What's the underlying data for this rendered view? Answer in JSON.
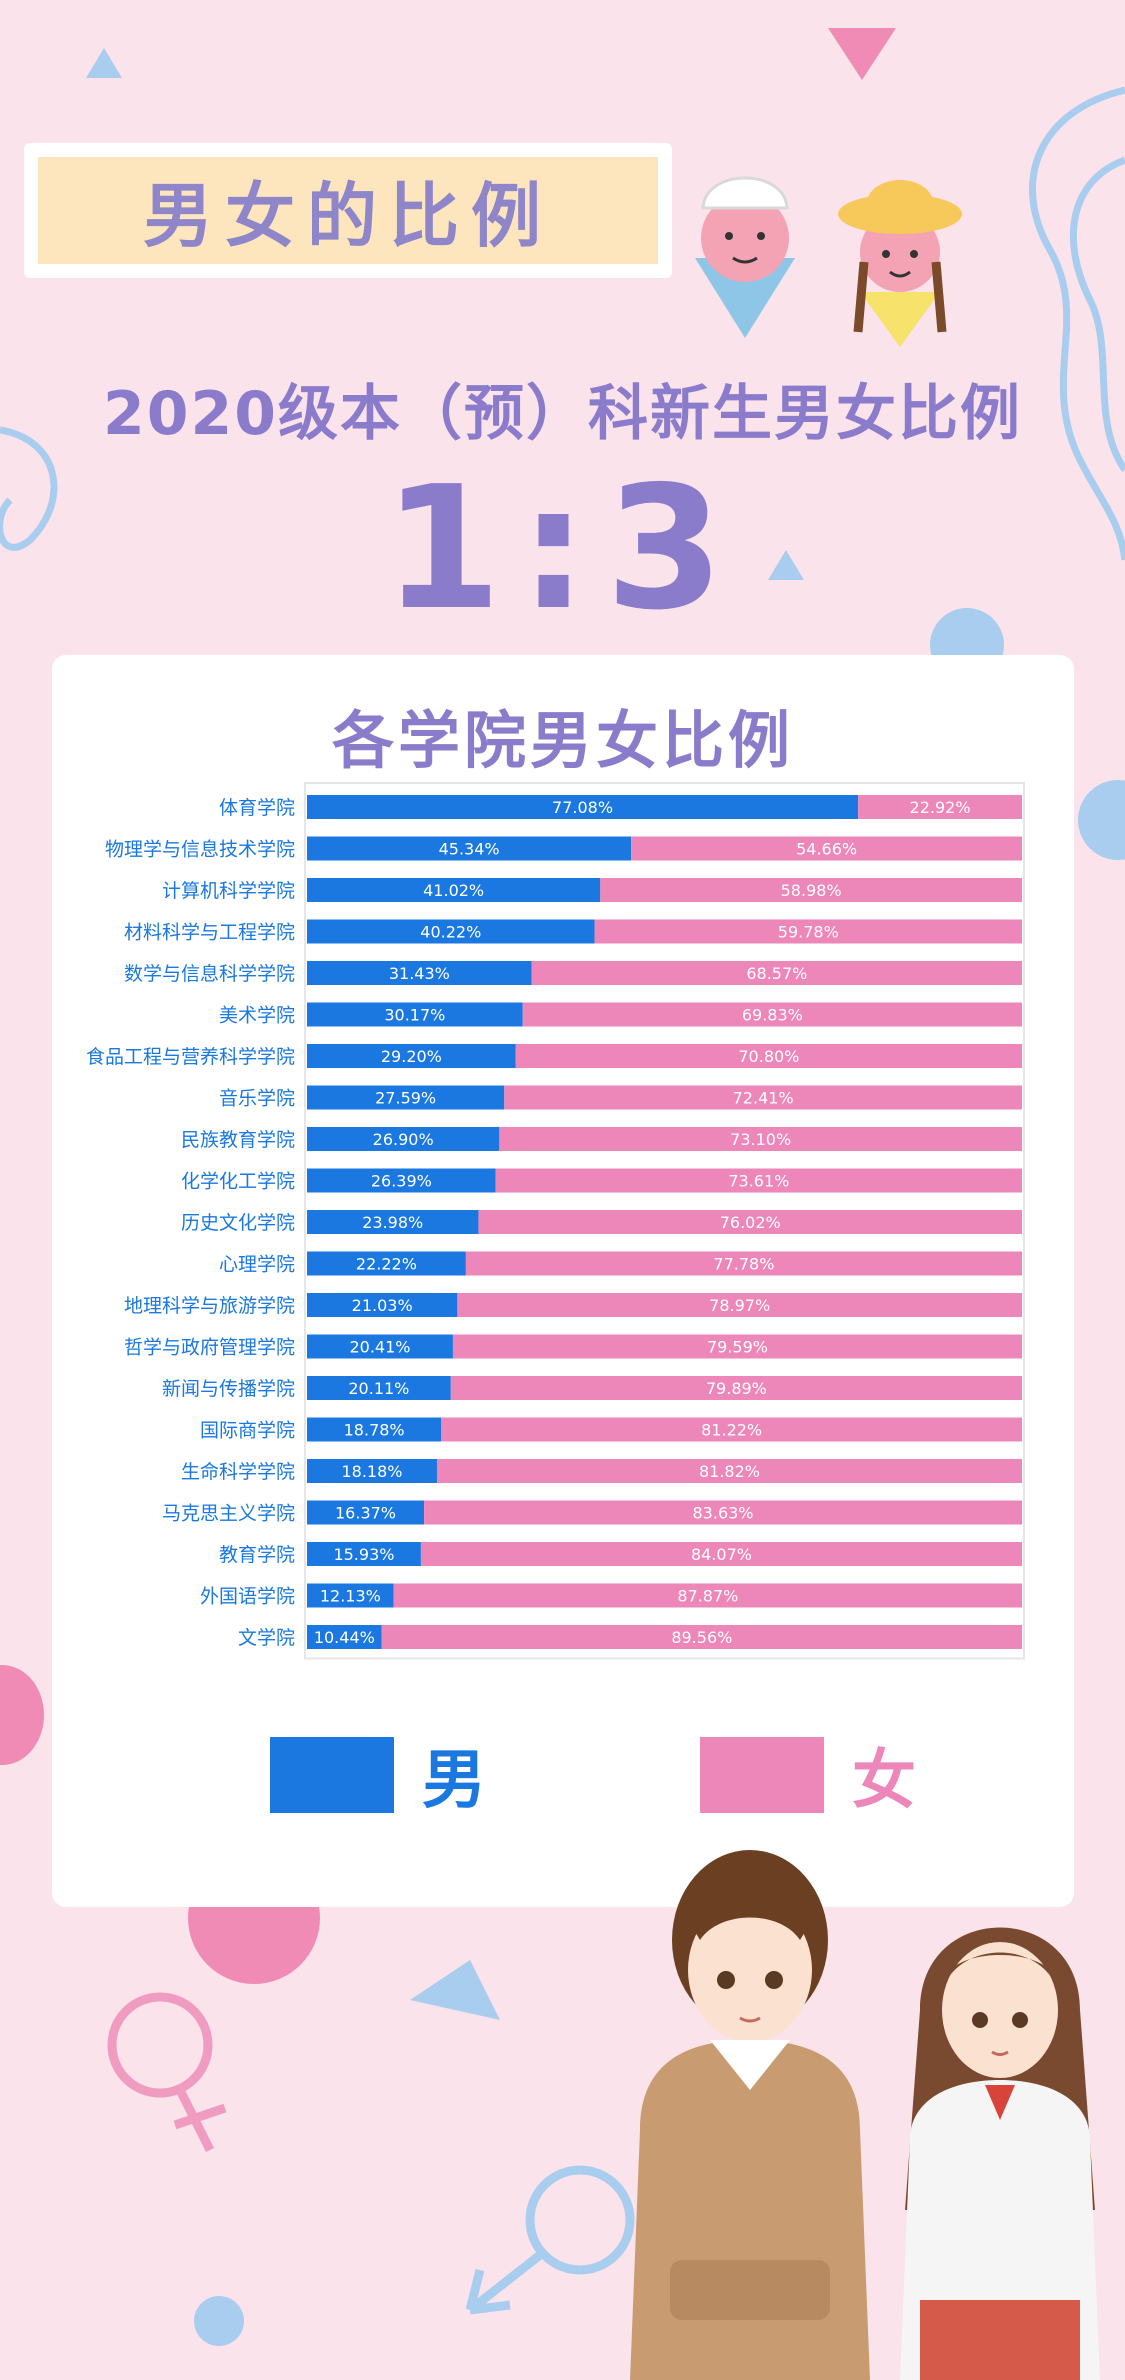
{
  "header": {
    "label": "男女的比例",
    "subtitle": "2020级本（预）科新生男女比例",
    "ratio": "1:3"
  },
  "colors": {
    "male": "#1a78e0",
    "female": "#ee87b9",
    "accent": "#8a7ccb",
    "background": "#fbe3ec"
  },
  "legend": {
    "male": "男",
    "female": "女"
  },
  "chart_data": {
    "type": "bar",
    "stacked": "100%",
    "orientation": "horizontal",
    "title": "各学院男女比例",
    "categories": [
      "体育学院",
      "物理学与信息技术学院",
      "计算机科学学院",
      "材料科学与工程学院",
      "数学与信息科学学院",
      "美术学院",
      "食品工程与营养科学学院",
      "音乐学院",
      "民族教育学院",
      "化学化工学院",
      "历史文化学院",
      "心理学院",
      "地理科学与旅游学院",
      "哲学与政府管理学院",
      "新闻与传播学院",
      "国际商学院",
      "生命科学学院",
      "马克思主义学院",
      "教育学院",
      "外国语学院",
      "文学院"
    ],
    "series": [
      {
        "name": "男",
        "values": [
          77.08,
          45.34,
          41.02,
          40.22,
          31.43,
          30.17,
          29.2,
          27.59,
          26.9,
          26.39,
          23.98,
          22.22,
          21.03,
          20.41,
          20.11,
          18.78,
          18.18,
          16.37,
          15.93,
          12.13,
          10.44
        ]
      },
      {
        "name": "女",
        "values": [
          22.92,
          54.66,
          58.98,
          59.78,
          68.57,
          69.83,
          70.8,
          72.41,
          73.1,
          73.61,
          76.02,
          77.78,
          78.97,
          79.59,
          79.89,
          81.22,
          81.82,
          83.63,
          84.07,
          87.87,
          89.56
        ]
      }
    ],
    "male_labels": [
      "77.08%",
      "45.34%",
      "41.02%",
      "40.22%",
      "31.43%",
      "30.17%",
      "29.20%",
      "27.59%",
      "26.90%",
      "26.39%",
      "23.98%",
      "22.22%",
      "21.03%",
      "20.41%",
      "20.11%",
      "18.78%",
      "18.18%",
      "16.37%",
      "15.93%",
      "12.13%",
      "10.44%"
    ],
    "female_labels": [
      "22.92%",
      "54.66%",
      "58.98%",
      "59.78%",
      "68.57%",
      "69.83%",
      "70.80%",
      "72.41%",
      "73.10%",
      "73.61%",
      "76.02%",
      "77.78%",
      "78.97%",
      "79.59%",
      "79.89%",
      "81.22%",
      "81.82%",
      "83.63%",
      "84.07%",
      "87.87%",
      "89.56%"
    ],
    "xlim": [
      0,
      100
    ],
    "legend_position": "bottom"
  }
}
